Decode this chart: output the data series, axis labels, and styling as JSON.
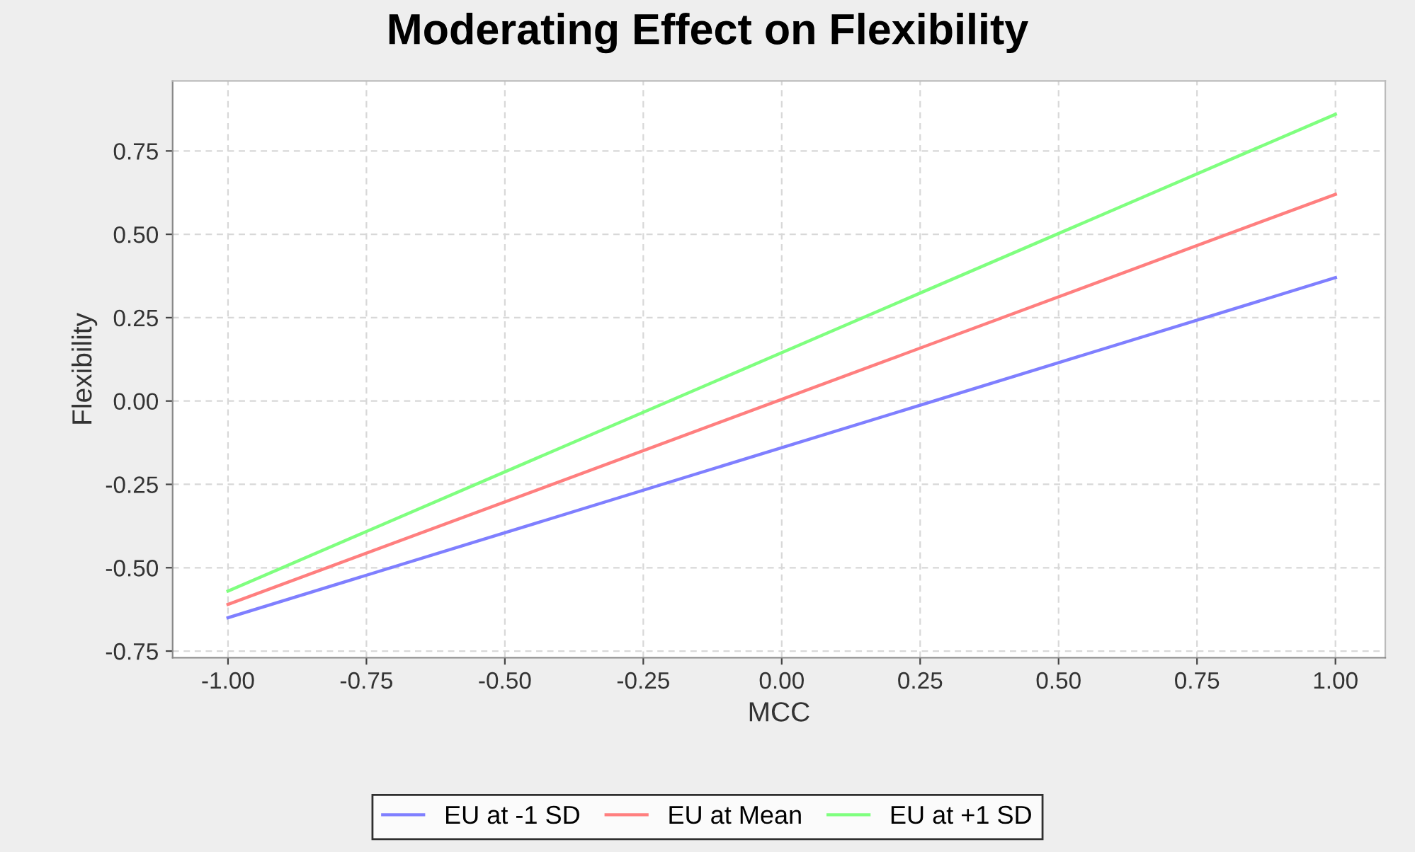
{
  "chart_data": {
    "type": "line",
    "title": "Moderating Effect on Flexibility",
    "xlabel": "MCC",
    "ylabel": "Flexibility",
    "x": [
      -1.0,
      1.0
    ],
    "series": [
      {
        "name": "EU at -1 SD",
        "color": "#7f7fff",
        "values": [
          -0.65,
          0.37
        ]
      },
      {
        "name": "EU at Mean",
        "color": "#ff7f7f",
        "values": [
          -0.61,
          0.62
        ]
      },
      {
        "name": "EU at +1 SD",
        "color": "#7fff7f",
        "values": [
          -0.57,
          0.86
        ]
      }
    ],
    "xlim": [
      -1.1,
      1.09
    ],
    "ylim": [
      -0.77,
      0.96
    ],
    "xticks": [
      {
        "value": -1.0,
        "label": "-1.00"
      },
      {
        "value": -0.75,
        "label": "-0.75"
      },
      {
        "value": -0.5,
        "label": "-0.50"
      },
      {
        "value": -0.25,
        "label": "-0.25"
      },
      {
        "value": 0,
        "label": "0.00"
      },
      {
        "value": 0.25,
        "label": "0.25"
      },
      {
        "value": 0.5,
        "label": "0.50"
      },
      {
        "value": 0.75,
        "label": "0.75"
      },
      {
        "value": 1.0,
        "label": "1.00"
      }
    ],
    "yticks": [
      {
        "value": -0.75,
        "label": "-0.75"
      },
      {
        "value": -0.5,
        "label": "-0.50"
      },
      {
        "value": -0.25,
        "label": "-0.25"
      },
      {
        "value": 0,
        "label": "0.00"
      },
      {
        "value": 0.25,
        "label": "0.25"
      },
      {
        "value": 0.5,
        "label": "0.50"
      },
      {
        "value": 0.75,
        "label": "0.75"
      }
    ],
    "grid": true,
    "legend": "bottom",
    "marker": "none",
    "line_style": "solid"
  }
}
